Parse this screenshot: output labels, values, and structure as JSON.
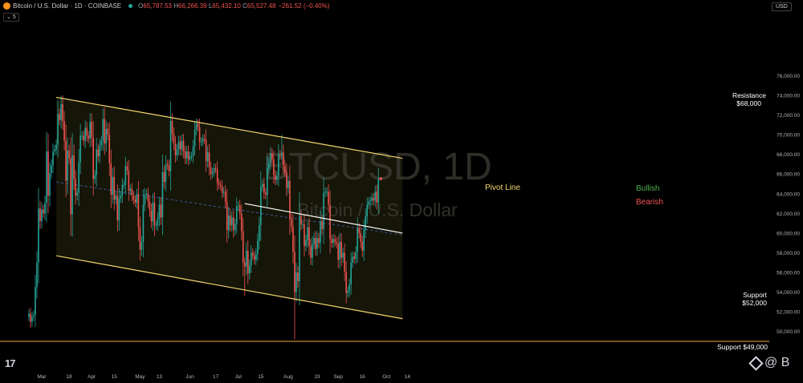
{
  "header": {
    "symbol_title": "Bitcoin / U.S. Dollar · 1D · COINBASE",
    "ohlc": [
      {
        "k": "O",
        "v": "65,787.53"
      },
      {
        "k": "H",
        "v": "66,266.39"
      },
      {
        "k": "L",
        "v": "65,432.10"
      },
      {
        "k": "C",
        "v": "65,527.48"
      }
    ],
    "change": "−261.52 (−0.40%)",
    "indicator_count": "5",
    "currency": "USD"
  },
  "watermark": {
    "ticker": "BTCUSD, 1D",
    "name": "Bitcoin / U.S. Dollar"
  },
  "labels": {
    "resistance": "Resistance",
    "resistance_value": "$68,000",
    "support": "Support",
    "support_value": "$52,000",
    "support_horizontal": "Support $49,000",
    "pivot": "Pivot Line",
    "bullish": "Bullish",
    "bearish": "Bearish"
  },
  "colors": {
    "background": "#000000",
    "channel_line": "#f5d76e",
    "channel_fill": "#151508",
    "support_line": "#f0a742",
    "pivot_line": "#ffffff",
    "bull": "#26a69a",
    "bear": "#ef5350",
    "bullish_text": "#4caf50",
    "bearish_text": "#ef5350",
    "pivot_text": "#f5d76e"
  },
  "chart_data": {
    "type": "candlestick",
    "ylim": [
      49000,
      76000
    ],
    "y_ticks": [
      "50,000.00",
      "52,000.00",
      "54,000.00",
      "56,000.00",
      "58,000.00",
      "60,000.00",
      "62,000.00",
      "64,000.00",
      "66,000.00",
      "68,000.00",
      "70,000.00",
      "72,000.00",
      "74,000.00",
      "76,000.00"
    ],
    "x_ticks": [
      "Mar",
      "18",
      "Apr",
      "15",
      "May",
      "13",
      "Jun",
      "17",
      "Jul",
      "15",
      "Aug",
      "19",
      "Sep",
      "16",
      "Oct",
      "14"
    ],
    "x_tick_dates": [
      "2024-03-01",
      "2024-03-18",
      "2024-04-01",
      "2024-04-15",
      "2024-05-01",
      "2024-05-13",
      "2024-06-01",
      "2024-06-17",
      "2024-07-01",
      "2024-07-15",
      "2024-08-01",
      "2024-08-19",
      "2024-09-01",
      "2024-09-16",
      "2024-10-01",
      "2024-10-14"
    ],
    "date_range": [
      "2024-02-22",
      "2024-09-26"
    ],
    "channel": {
      "upper": [
        {
          "date": "2024-03-10",
          "y": 73800
        },
        {
          "date": "2024-10-11",
          "y": 67600
        }
      ],
      "lower": [
        {
          "date": "2024-03-10",
          "y": 57700
        },
        {
          "date": "2024-10-11",
          "y": 51300
        }
      ]
    },
    "pivot_line": [
      {
        "date": "2024-07-05",
        "y": 63000
      },
      {
        "date": "2024-10-11",
        "y": 60000
      }
    ],
    "trend_dashed": [
      {
        "date": "2024-03-10",
        "y": 65200
      },
      {
        "date": "2024-10-11",
        "y": 59800
      }
    ],
    "support_level": 49000,
    "last_price": 65527.48,
    "closes": [
      [
        "2024-02-22",
        51800
      ],
      [
        "2024-02-23",
        51000
      ],
      [
        "2024-02-24",
        51500
      ],
      [
        "2024-02-25",
        51700
      ],
      [
        "2024-02-26",
        54500
      ],
      [
        "2024-02-27",
        57000
      ],
      [
        "2024-02-28",
        62500
      ],
      [
        "2024-02-29",
        61200
      ],
      [
        "2024-03-01",
        62400
      ],
      [
        "2024-03-02",
        62000
      ],
      [
        "2024-03-03",
        63100
      ],
      [
        "2024-03-04",
        68300
      ],
      [
        "2024-03-05",
        63800
      ],
      [
        "2024-03-06",
        66100
      ],
      [
        "2024-03-07",
        66900
      ],
      [
        "2024-03-08",
        68300
      ],
      [
        "2024-03-09",
        68500
      ],
      [
        "2024-03-10",
        69000
      ],
      [
        "2024-03-11",
        72100
      ],
      [
        "2024-03-12",
        71500
      ],
      [
        "2024-03-13",
        73100
      ],
      [
        "2024-03-14",
        71400
      ],
      [
        "2024-03-15",
        69400
      ],
      [
        "2024-03-16",
        65300
      ],
      [
        "2024-03-17",
        68400
      ],
      [
        "2024-03-18",
        67600
      ],
      [
        "2024-03-19",
        61900
      ],
      [
        "2024-03-20",
        67900
      ],
      [
        "2024-03-21",
        65500
      ],
      [
        "2024-03-22",
        63800
      ],
      [
        "2024-03-23",
        64100
      ],
      [
        "2024-03-24",
        67200
      ],
      [
        "2024-03-25",
        69900
      ],
      [
        "2024-03-26",
        69900
      ],
      [
        "2024-03-27",
        69400
      ],
      [
        "2024-03-28",
        70700
      ],
      [
        "2024-03-29",
        69900
      ],
      [
        "2024-03-30",
        69600
      ],
      [
        "2024-03-31",
        71300
      ],
      [
        "2024-04-01",
        69700
      ],
      [
        "2024-04-02",
        65500
      ],
      [
        "2024-04-03",
        65900
      ],
      [
        "2024-04-04",
        68500
      ],
      [
        "2024-04-05",
        67800
      ],
      [
        "2024-04-06",
        68900
      ],
      [
        "2024-04-07",
        69400
      ],
      [
        "2024-04-08",
        71600
      ],
      [
        "2024-04-09",
        69100
      ],
      [
        "2024-04-10",
        70600
      ],
      [
        "2024-04-11",
        70000
      ],
      [
        "2024-04-12",
        67100
      ],
      [
        "2024-04-13",
        63900
      ],
      [
        "2024-04-14",
        65700
      ],
      [
        "2024-04-15",
        63400
      ],
      [
        "2024-04-16",
        63800
      ],
      [
        "2024-04-17",
        61300
      ],
      [
        "2024-04-18",
        63500
      ],
      [
        "2024-04-19",
        63800
      ],
      [
        "2024-04-20",
        64900
      ],
      [
        "2024-04-21",
        64900
      ],
      [
        "2024-04-22",
        66800
      ],
      [
        "2024-04-23",
        66400
      ],
      [
        "2024-04-24",
        64300
      ],
      [
        "2024-04-25",
        64500
      ],
      [
        "2024-04-26",
        63800
      ],
      [
        "2024-04-27",
        63400
      ],
      [
        "2024-04-28",
        63100
      ],
      [
        "2024-04-29",
        63900
      ],
      [
        "2024-04-30",
        60600
      ],
      [
        "2024-05-01",
        58300
      ],
      [
        "2024-05-02",
        59100
      ],
      [
        "2024-05-03",
        62900
      ],
      [
        "2024-05-04",
        63900
      ],
      [
        "2024-05-05",
        64000
      ],
      [
        "2024-05-06",
        63200
      ],
      [
        "2024-05-07",
        62300
      ],
      [
        "2024-05-08",
        61200
      ],
      [
        "2024-05-09",
        63100
      ],
      [
        "2024-05-10",
        60800
      ],
      [
        "2024-05-11",
        60800
      ],
      [
        "2024-05-12",
        61500
      ],
      [
        "2024-05-13",
        62900
      ],
      [
        "2024-05-14",
        61600
      ],
      [
        "2024-05-15",
        66200
      ],
      [
        "2024-05-16",
        65200
      ],
      [
        "2024-05-17",
        67000
      ],
      [
        "2024-05-18",
        66900
      ],
      [
        "2024-05-19",
        66300
      ],
      [
        "2024-05-20",
        71400
      ],
      [
        "2024-05-21",
        70100
      ],
      [
        "2024-05-22",
        69100
      ],
      [
        "2024-05-23",
        67900
      ],
      [
        "2024-05-24",
        68500
      ],
      [
        "2024-05-25",
        69300
      ],
      [
        "2024-05-26",
        68500
      ],
      [
        "2024-05-27",
        69400
      ],
      [
        "2024-05-28",
        68300
      ],
      [
        "2024-05-29",
        67600
      ],
      [
        "2024-05-30",
        68300
      ],
      [
        "2024-05-31",
        67500
      ],
      [
        "2024-06-01",
        67800
      ],
      [
        "2024-06-02",
        67800
      ],
      [
        "2024-06-03",
        68800
      ],
      [
        "2024-06-04",
        70500
      ],
      [
        "2024-06-05",
        71100
      ],
      [
        "2024-06-06",
        70800
      ],
      [
        "2024-06-07",
        69300
      ],
      [
        "2024-06-08",
        69300
      ],
      [
        "2024-06-09",
        69600
      ],
      [
        "2024-06-10",
        69500
      ],
      [
        "2024-06-11",
        67300
      ],
      [
        "2024-06-12",
        68200
      ],
      [
        "2024-06-13",
        66700
      ],
      [
        "2024-06-14",
        66000
      ],
      [
        "2024-06-15",
        66200
      ],
      [
        "2024-06-16",
        66600
      ],
      [
        "2024-06-17",
        66500
      ],
      [
        "2024-06-18",
        65100
      ],
      [
        "2024-06-19",
        64900
      ],
      [
        "2024-06-20",
        64800
      ],
      [
        "2024-06-21",
        64100
      ],
      [
        "2024-06-22",
        64200
      ],
      [
        "2024-06-23",
        63200
      ],
      [
        "2024-06-24",
        60300
      ],
      [
        "2024-06-25",
        61800
      ],
      [
        "2024-06-26",
        60800
      ],
      [
        "2024-06-27",
        61600
      ],
      [
        "2024-06-28",
        60300
      ],
      [
        "2024-06-29",
        60900
      ],
      [
        "2024-06-30",
        62700
      ],
      [
        "2024-07-01",
        62800
      ],
      [
        "2024-07-02",
        62000
      ],
      [
        "2024-07-03",
        60200
      ],
      [
        "2024-07-04",
        57000
      ],
      [
        "2024-07-05",
        56600
      ],
      [
        "2024-07-06",
        58200
      ],
      [
        "2024-07-07",
        55900
      ],
      [
        "2024-07-08",
        56700
      ],
      [
        "2024-07-09",
        58000
      ],
      [
        "2024-07-10",
        57700
      ],
      [
        "2024-07-11",
        57300
      ],
      [
        "2024-07-12",
        57900
      ],
      [
        "2024-07-13",
        59200
      ],
      [
        "2024-07-14",
        60800
      ],
      [
        "2024-07-15",
        64700
      ],
      [
        "2024-07-16",
        65000
      ],
      [
        "2024-07-17",
        64100
      ],
      [
        "2024-07-18",
        63900
      ],
      [
        "2024-07-19",
        66600
      ],
      [
        "2024-07-20",
        67100
      ],
      [
        "2024-07-21",
        68100
      ],
      [
        "2024-07-22",
        67500
      ],
      [
        "2024-07-23",
        65900
      ],
      [
        "2024-07-24",
        65400
      ],
      [
        "2024-07-25",
        65800
      ],
      [
        "2024-07-26",
        68000
      ],
      [
        "2024-07-27",
        67900
      ],
      [
        "2024-07-28",
        68200
      ],
      [
        "2024-07-29",
        66800
      ],
      [
        "2024-07-30",
        66200
      ],
      [
        "2024-07-31",
        64600
      ],
      [
        "2024-08-01",
        65300
      ],
      [
        "2024-08-02",
        61400
      ],
      [
        "2024-08-03",
        60700
      ],
      [
        "2024-08-04",
        58100
      ],
      [
        "2024-08-05",
        54000
      ],
      [
        "2024-08-06",
        56000
      ],
      [
        "2024-08-07",
        55100
      ],
      [
        "2024-08-08",
        61700
      ],
      [
        "2024-08-09",
        60900
      ],
      [
        "2024-08-10",
        60900
      ],
      [
        "2024-08-11",
        58700
      ],
      [
        "2024-08-12",
        59300
      ],
      [
        "2024-08-13",
        60600
      ],
      [
        "2024-08-14",
        58700
      ],
      [
        "2024-08-15",
        57500
      ],
      [
        "2024-08-16",
        58900
      ],
      [
        "2024-08-17",
        59500
      ],
      [
        "2024-08-18",
        58400
      ],
      [
        "2024-08-19",
        59500
      ],
      [
        "2024-08-20",
        59000
      ],
      [
        "2024-08-21",
        61200
      ],
      [
        "2024-08-22",
        60400
      ],
      [
        "2024-08-23",
        64100
      ],
      [
        "2024-08-24",
        64200
      ],
      [
        "2024-08-25",
        64200
      ],
      [
        "2024-08-26",
        62900
      ],
      [
        "2024-08-27",
        59400
      ],
      [
        "2024-08-28",
        59000
      ],
      [
        "2024-08-29",
        59400
      ],
      [
        "2024-08-30",
        59100
      ],
      [
        "2024-08-31",
        58900
      ],
      [
        "2024-09-01",
        57300
      ],
      [
        "2024-09-02",
        59100
      ],
      [
        "2024-09-03",
        57500
      ],
      [
        "2024-09-04",
        58000
      ],
      [
        "2024-09-05",
        56100
      ],
      [
        "2024-09-06",
        53900
      ],
      [
        "2024-09-07",
        54100
      ],
      [
        "2024-09-08",
        54800
      ],
      [
        "2024-09-09",
        57000
      ],
      [
        "2024-09-10",
        57600
      ],
      [
        "2024-09-11",
        57400
      ],
      [
        "2024-09-12",
        58100
      ],
      [
        "2024-09-13",
        60500
      ],
      [
        "2024-09-14",
        60000
      ],
      [
        "2024-09-15",
        59100
      ],
      [
        "2024-09-16",
        58200
      ],
      [
        "2024-09-17",
        60300
      ],
      [
        "2024-09-18",
        61700
      ],
      [
        "2024-09-19",
        62900
      ],
      [
        "2024-09-20",
        63200
      ],
      [
        "2024-09-21",
        63300
      ],
      [
        "2024-09-22",
        63600
      ],
      [
        "2024-09-23",
        63300
      ],
      [
        "2024-09-24",
        64200
      ],
      [
        "2024-09-25",
        63100
      ],
      [
        "2024-09-26",
        65500
      ]
    ]
  }
}
